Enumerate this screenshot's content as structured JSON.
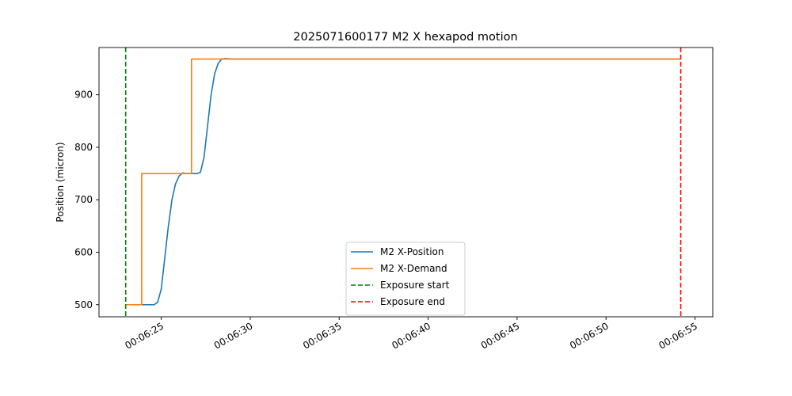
{
  "chart_data": {
    "type": "line",
    "title": "2025071600177 M2 X hexapod motion",
    "xlabel": "",
    "ylabel": "Position (micron)",
    "x_unit": "time (HH:MM:SS)",
    "xlim": [
      "00:06:21.5",
      "00:06:56.0"
    ],
    "ylim": [
      477,
      990
    ],
    "x_ticks": [
      "00:06:25",
      "00:06:30",
      "00:06:35",
      "00:06:40",
      "00:06:45",
      "00:06:50",
      "00:06:55"
    ],
    "y_ticks": [
      500,
      600,
      700,
      800,
      900
    ],
    "grid": false,
    "legend_position": "lower center",
    "series": [
      {
        "name": "M2 X-Position",
        "color": "#1f77b4",
        "style": "solid",
        "points": [
          [
            "00:06:23.0",
            500
          ],
          [
            "00:06:24.6",
            500
          ],
          [
            "00:06:24.8",
            505
          ],
          [
            "00:06:25.0",
            530
          ],
          [
            "00:06:25.2",
            590
          ],
          [
            "00:06:25.4",
            650
          ],
          [
            "00:06:25.6",
            700
          ],
          [
            "00:06:25.8",
            730
          ],
          [
            "00:06:26.0",
            745
          ],
          [
            "00:06:26.2",
            751
          ],
          [
            "00:06:26.4",
            750
          ],
          [
            "00:06:27.0",
            750
          ],
          [
            "00:06:27.2",
            752
          ],
          [
            "00:06:27.4",
            780
          ],
          [
            "00:06:27.6",
            840
          ],
          [
            "00:06:27.8",
            900
          ],
          [
            "00:06:28.0",
            940
          ],
          [
            "00:06:28.2",
            960
          ],
          [
            "00:06:28.4",
            968
          ],
          [
            "00:06:28.6",
            969
          ],
          [
            "00:06:29.0",
            968
          ],
          [
            "00:06:54.2",
            968
          ]
        ]
      },
      {
        "name": "M2 X-Demand",
        "color": "#ff7f0e",
        "style": "solid",
        "points": [
          [
            "00:06:23.0",
            500
          ],
          [
            "00:06:23.9",
            500
          ],
          [
            "00:06:23.9",
            750
          ],
          [
            "00:06:26.7",
            750
          ],
          [
            "00:06:26.7",
            968
          ],
          [
            "00:06:54.2",
            968
          ]
        ]
      }
    ],
    "vlines": [
      {
        "name": "Exposure start",
        "x": "00:06:23.0",
        "color": "#008000",
        "style": "dashed"
      },
      {
        "name": "Exposure end",
        "x": "00:06:54.2",
        "color": "#ff0000",
        "style": "dashed"
      }
    ]
  }
}
